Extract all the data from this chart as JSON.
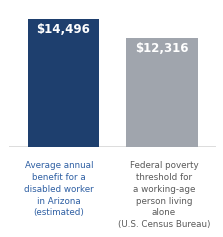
{
  "categories": [
    "Average annual\nbenefit for a\ndisabled worker\nin Arizona\n(estimated)",
    "Federal poverty\nthreshold for\na working-age\nperson living\nalone\n(U.S. Census Bureau)"
  ],
  "values": [
    14496,
    12316
  ],
  "bar_labels": [
    "$14,496",
    "$12,316"
  ],
  "bar_colors": [
    "#1e3f6e",
    "#a0a5ad"
  ],
  "label_colors": [
    "#ffffff",
    "#ffffff"
  ],
  "background_color": "#ffffff",
  "ylim": [
    0,
    15800
  ],
  "bar_width": 0.72,
  "label_fontsize": 8.5,
  "xlabel_fontsize": 6.3,
  "xlabel_color": "#2e5fa3",
  "xlabel_color2": "#5a5a5a",
  "line_color": "#555555"
}
